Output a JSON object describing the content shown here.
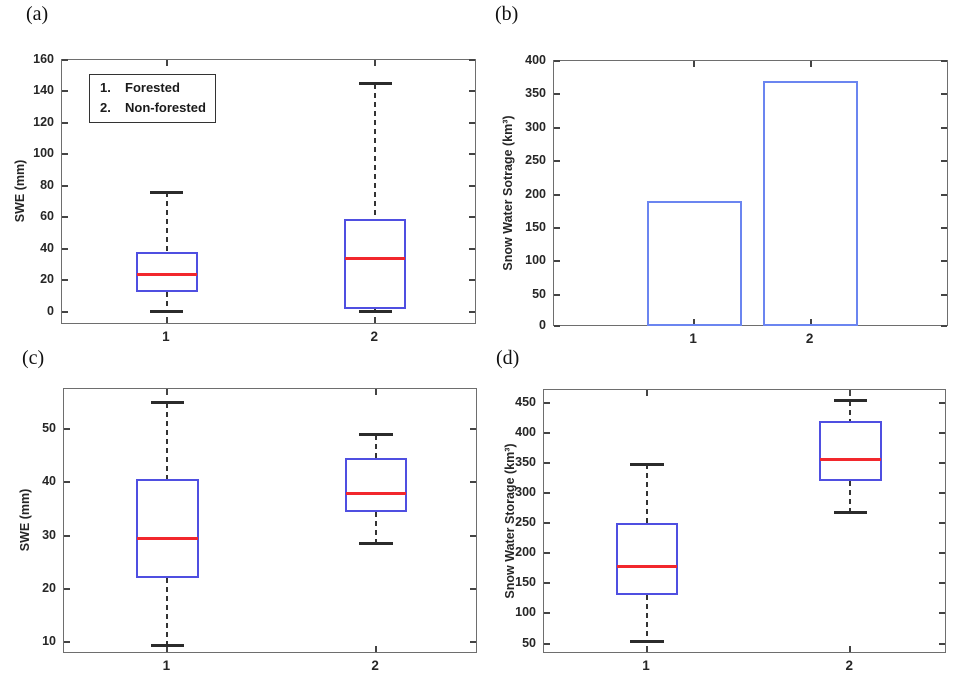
{
  "figure_title": "",
  "colors": {
    "box_edge": "#4f4fe1",
    "bar_edge": "#6b85f0",
    "median": "#f2282d",
    "whisker": "#333333",
    "cap": "#2b2b2b",
    "axis": "#6e6e6e",
    "axis_dark": "#444444"
  },
  "chart_data": [
    {
      "panel_label": "(a)",
      "type": "boxplot",
      "ylabel": "SWE (mm)",
      "xlabel": "",
      "categories": [
        "1",
        "2"
      ],
      "ylim": [
        -9,
        160
      ],
      "yticks": [
        0,
        20,
        40,
        60,
        80,
        100,
        120,
        140,
        160
      ],
      "grid": false,
      "x_centers": [
        0.252,
        0.753
      ],
      "box_width_frac": 0.15,
      "series": [
        {
          "category": "1",
          "whisker_low": 0,
          "q1": 12.5,
          "median": 24,
          "q3": 38,
          "whisker_high": 76
        },
        {
          "category": "2",
          "whisker_low": 0,
          "q1": 1.5,
          "median": 34,
          "q3": 59,
          "whisker_high": 145
        }
      ],
      "legend": {
        "position": "upper-left",
        "items": [
          {
            "num": "1.",
            "label": "Forested"
          },
          {
            "num": "2.",
            "label": "Non-forested"
          }
        ]
      }
    },
    {
      "panel_label": "(b)",
      "type": "bar",
      "ylabel": "Snow Water Sotrage (km³)",
      "xlabel": "",
      "categories": [
        "1",
        "2"
      ],
      "values": [
        190,
        370
      ],
      "ylim": [
        0,
        400
      ],
      "yticks": [
        0,
        50,
        100,
        150,
        200,
        250,
        300,
        350,
        400
      ],
      "grid": false,
      "x_centers": [
        0.354,
        0.648
      ],
      "bar_width_frac": 0.239
    },
    {
      "panel_label": "(c)",
      "type": "boxplot",
      "ylabel": "SWE (mm)",
      "xlabel": "",
      "categories": [
        "1",
        "2"
      ],
      "ylim": [
        7.5,
        57.6
      ],
      "yticks": [
        10,
        20,
        30,
        40,
        50
      ],
      "grid": false,
      "x_centers": [
        0.249,
        0.752
      ],
      "box_width_frac": 0.151,
      "series": [
        {
          "category": "1",
          "whisker_low": 9.3,
          "q1": 22,
          "median": 29.5,
          "q3": 40.6,
          "whisker_high": 55
        },
        {
          "category": "2",
          "whisker_low": 28.5,
          "q1": 34.5,
          "median": 38,
          "q3": 44.6,
          "whisker_high": 49
        }
      ]
    },
    {
      "panel_label": "(d)",
      "type": "boxplot",
      "ylabel": "Snow Water Storage (km³)",
      "xlabel": "",
      "categories": [
        "1",
        "2"
      ],
      "ylim": [
        31,
        471
      ],
      "yticks": [
        50,
        100,
        150,
        200,
        250,
        300,
        350,
        400,
        450
      ],
      "grid": false,
      "x_centers": [
        0.255,
        0.758
      ],
      "box_width_frac": 0.155,
      "series": [
        {
          "category": "1",
          "whisker_low": 54,
          "q1": 131,
          "median": 178,
          "q3": 250,
          "whisker_high": 348
        },
        {
          "category": "2",
          "whisker_low": 267,
          "q1": 320,
          "median": 355,
          "q3": 420,
          "whisker_high": 453
        }
      ]
    }
  ]
}
